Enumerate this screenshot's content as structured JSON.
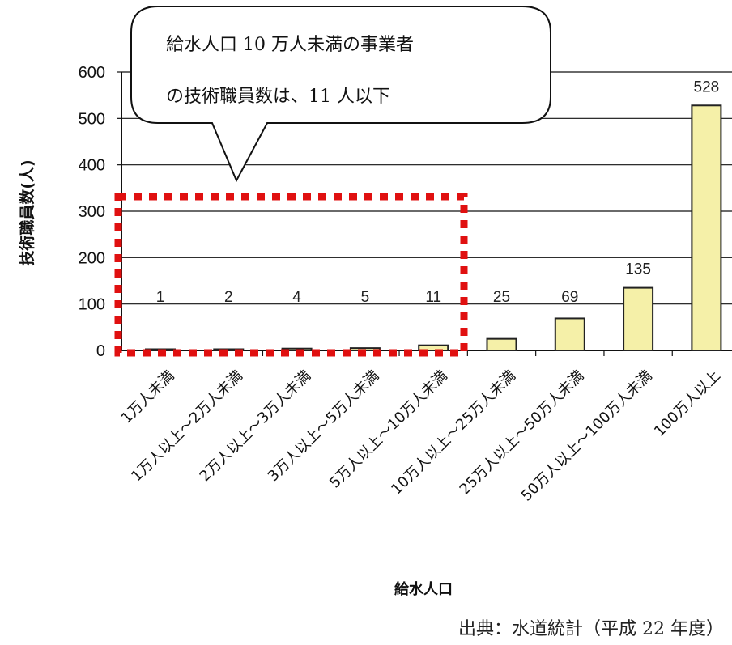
{
  "chart_data": {
    "type": "bar",
    "categories": [
      "1万人未満",
      "1万人以上～2万人未満",
      "2万人以上～3万人未満",
      "3万人以上～5万人未満",
      "5万人以上～10万人未満",
      "10万人以上～25万人未満",
      "25万人以上～50万人未満",
      "50万人以上～100万人未満",
      "100万人以上"
    ],
    "values": [
      1,
      2,
      4,
      5,
      11,
      25,
      69,
      135,
      528
    ],
    "data_labels": [
      "1",
      "2",
      "4",
      "5",
      "11",
      "25",
      "69",
      "135",
      "528"
    ],
    "xlabel": "給水人口",
    "ylabel": "技術職員数(人)",
    "ylim": [
      0,
      600
    ],
    "yticks": [
      "0",
      "100",
      "200",
      "300",
      "400",
      "500",
      "600"
    ],
    "grid": true,
    "bar_color": "#f5f0a8",
    "highlight_color": "#e01010",
    "annotation": {
      "line1": "給水人口 10 万人未満の事業者",
      "line2": "の技術職員数は、11 人以下"
    },
    "source": "出典：水道統計（平成 22 年度）"
  }
}
